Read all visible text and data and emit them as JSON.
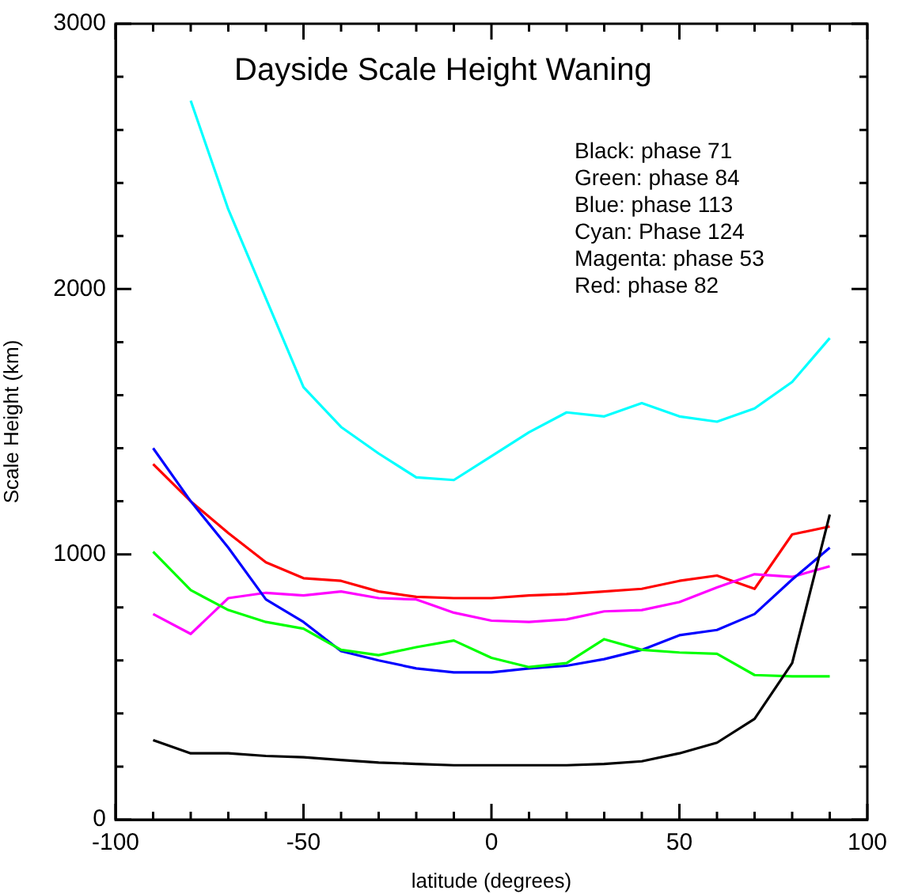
{
  "chart_data": {
    "type": "line",
    "title": "Dayside Scale Height Waning",
    "xlabel": "latitude (degrees)",
    "ylabel": "Scale Height (km)",
    "x": [
      -90,
      -80,
      -70,
      -60,
      -50,
      -40,
      -30,
      -20,
      -10,
      0,
      10,
      20,
      30,
      40,
      50,
      60,
      70,
      80,
      90
    ],
    "series": [
      {
        "color": "#000000",
        "values": [
          300,
          250,
          250,
          240,
          235,
          225,
          215,
          210,
          205,
          205,
          205,
          205,
          210,
          220,
          250,
          290,
          380,
          590,
          1150
        ]
      },
      {
        "color": "#00ff00",
        "values": [
          1010,
          865,
          790,
          745,
          720,
          640,
          620,
          650,
          675,
          610,
          575,
          590,
          680,
          640,
          630,
          625,
          545,
          540,
          540
        ]
      },
      {
        "color": "#0000ff",
        "values": [
          1400,
          1200,
          1025,
          830,
          745,
          635,
          600,
          570,
          555,
          555,
          570,
          580,
          605,
          640,
          695,
          715,
          775,
          905,
          1025
        ]
      },
      {
        "color": "#00ffff",
        "values": [
          null,
          2710,
          2300,
          1965,
          1630,
          1480,
          1380,
          1290,
          1280,
          1370,
          1460,
          1535,
          1520,
          1570,
          1520,
          1500,
          1550,
          1650,
          1815
        ]
      },
      {
        "color": "#ff00ff",
        "values": [
          775,
          700,
          835,
          855,
          845,
          860,
          835,
          830,
          780,
          750,
          745,
          755,
          785,
          790,
          820,
          875,
          925,
          915,
          955
        ]
      },
      {
        "color": "#ff0000",
        "values": [
          1340,
          1200,
          1080,
          970,
          910,
          900,
          860,
          840,
          835,
          835,
          845,
          850,
          860,
          870,
          900,
          920,
          870,
          1075,
          1105
        ]
      }
    ],
    "xlim": [
      -100,
      100
    ],
    "xticks": [
      -100,
      {
        "value": -90,
        "label": null
      },
      {
        "value": -80,
        "label": null
      },
      {
        "value": -70,
        "label": null
      },
      {
        "value": -60,
        "label": null
      },
      -50,
      {
        "value": -40,
        "label": null
      },
      {
        "value": -30,
        "label": null
      },
      {
        "value": -20,
        "label": null
      },
      {
        "value": -10,
        "label": null
      },
      0,
      {
        "value": 10,
        "label": null
      },
      {
        "value": 20,
        "label": null
      },
      {
        "value": 30,
        "label": null
      },
      {
        "value": 40,
        "label": null
      },
      50,
      {
        "value": 60,
        "label": null
      },
      {
        "value": 70,
        "label": null
      },
      {
        "value": 80,
        "label": null
      },
      {
        "value": 90,
        "label": null
      },
      100
    ],
    "ylim": [
      0,
      3000
    ],
    "yticks": [
      0,
      {
        "value": 200,
        "label": null
      },
      {
        "value": 400,
        "label": null
      },
      {
        "value": 600,
        "label": null
      },
      {
        "value": 800,
        "label": null
      },
      1000,
      {
        "value": 1200,
        "label": null
      },
      {
        "value": 1400,
        "label": null
      },
      {
        "value": 1600,
        "label": null
      },
      {
        "value": 1800,
        "label": null
      },
      2000,
      {
        "value": 2200,
        "label": null
      },
      {
        "value": 2400,
        "label": null
      },
      {
        "value": 2600,
        "label": null
      },
      {
        "value": 2800,
        "label": null
      },
      3000
    ],
    "annotations": [
      "Black: phase 71",
      "Green: phase 84",
      "Blue: phase 113",
      "Cyan: Phase 124",
      "Magenta: phase 53",
      "Red: phase 82"
    ],
    "grid": false,
    "legend": false,
    "marker": "none",
    "line_style": "solid"
  }
}
